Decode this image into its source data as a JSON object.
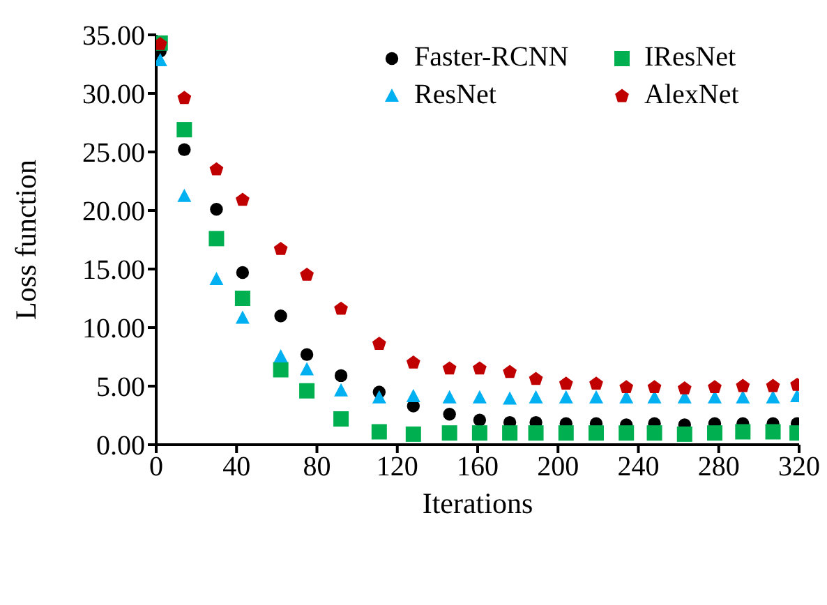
{
  "chart_data": {
    "type": "scatter",
    "xlabel": "Iterations",
    "ylabel": "Loss function",
    "x": [
      2,
      14,
      30,
      43,
      62,
      75,
      92,
      111,
      128,
      146,
      161,
      176,
      189,
      204,
      219,
      234,
      248,
      263,
      278,
      292,
      307,
      319
    ],
    "series": [
      {
        "name": "Faster-RCNN",
        "color": "#000000",
        "marker": "circle",
        "values": [
          33.6,
          25.2,
          20.1,
          14.7,
          11.0,
          7.7,
          5.9,
          4.5,
          3.3,
          2.6,
          2.1,
          1.9,
          1.9,
          1.8,
          1.8,
          1.7,
          1.8,
          1.7,
          1.8,
          1.8,
          1.8,
          1.8
        ]
      },
      {
        "name": "IResNet",
        "color": "#00b050",
        "marker": "square",
        "values": [
          34.3,
          26.9,
          17.6,
          12.5,
          6.4,
          4.6,
          2.2,
          1.1,
          0.9,
          1.0,
          1.0,
          1.0,
          1.0,
          1.0,
          1.0,
          1.0,
          1.0,
          0.9,
          1.0,
          1.1,
          1.1,
          1.0
        ]
      },
      {
        "name": "ResNet",
        "color": "#00b0f0",
        "marker": "triangle",
        "values": [
          32.8,
          21.2,
          14.1,
          10.8,
          7.5,
          6.4,
          4.6,
          4.0,
          4.1,
          4.0,
          4.0,
          3.9,
          4.0,
          4.0,
          4.0,
          4.0,
          4.0,
          4.0,
          4.0,
          4.0,
          4.0,
          4.1
        ]
      },
      {
        "name": "AlexNet",
        "color": "#c00000",
        "values": [
          34.2,
          29.6,
          23.5,
          20.9,
          16.7,
          14.5,
          11.6,
          8.6,
          7.0,
          6.5,
          6.5,
          6.2,
          5.6,
          5.2,
          5.2,
          4.9,
          4.9,
          4.8,
          4.9,
          5.0,
          5.0,
          5.1
        ]
      }
    ],
    "xlim": [
      0,
      320
    ],
    "xticks": [
      0,
      40,
      80,
      120,
      160,
      200,
      240,
      280,
      320
    ],
    "ylim": [
      0,
      35
    ],
    "yticks": [
      {
        "value": 0,
        "label": "0.00"
      },
      {
        "value": 5,
        "label": "5.00"
      },
      {
        "value": 10,
        "label": "10.00"
      },
      {
        "value": 15,
        "label": "15.00"
      },
      {
        "value": 20,
        "label": "20.00"
      },
      {
        "value": 25,
        "label": "25.00"
      },
      {
        "value": 30,
        "label": "30.00"
      },
      {
        "value": 35,
        "label": "35.00"
      }
    ],
    "grid": false,
    "legend": "top right"
  }
}
